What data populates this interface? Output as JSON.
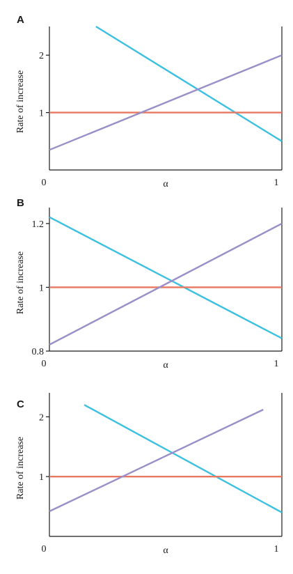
{
  "chart_data": [
    {
      "type": "line",
      "panel": "A",
      "xlabel": "α",
      "ylabel": "Rate of increase",
      "xlim": [
        0,
        1
      ],
      "ylim": [
        0,
        2.5
      ],
      "xticks": [
        {
          "value": 0,
          "label": "0"
        },
        {
          "value": 1,
          "label": "1"
        }
      ],
      "yticks": [
        {
          "value": 1,
          "label": "1"
        },
        {
          "value": 2,
          "label": "2"
        }
      ],
      "grid": false,
      "series": [
        {
          "color": "#3cc0e0",
          "x": [
            0.2,
            1
          ],
          "y": [
            2.5,
            0.5
          ]
        },
        {
          "color": "#e87860",
          "x": [
            0,
            1
          ],
          "y": [
            1,
            1
          ]
        },
        {
          "color": "#9a8ec8",
          "x": [
            0,
            1
          ],
          "y": [
            0.35,
            2
          ]
        }
      ]
    },
    {
      "type": "line",
      "panel": "B",
      "xlabel": "α",
      "ylabel": "Rate of increase",
      "xlim": [
        0,
        1
      ],
      "ylim": [
        0.8,
        1.25
      ],
      "xticks": [
        {
          "value": 0,
          "label": "0"
        },
        {
          "value": 1,
          "label": "1"
        }
      ],
      "yticks": [
        {
          "value": 0.8,
          "label": "0.8"
        },
        {
          "value": 1,
          "label": "1"
        },
        {
          "value": 1.2,
          "label": "1.2"
        }
      ],
      "grid": false,
      "series": [
        {
          "color": "#3cc0e0",
          "x": [
            0,
            1
          ],
          "y": [
            1.22,
            0.84
          ]
        },
        {
          "color": "#e87860",
          "x": [
            0,
            1
          ],
          "y": [
            1,
            1
          ]
        },
        {
          "color": "#9a8ec8",
          "x": [
            0,
            1
          ],
          "y": [
            0.82,
            1.2
          ]
        }
      ]
    },
    {
      "type": "line",
      "panel": "C",
      "xlabel": "α",
      "ylabel": "Rate of increase",
      "xlim": [
        0,
        1
      ],
      "ylim": [
        0,
        2.4
      ],
      "xticks": [
        {
          "value": 0,
          "label": "0"
        },
        {
          "value": 1,
          "label": "1"
        }
      ],
      "yticks": [
        {
          "value": 1,
          "label": "1"
        },
        {
          "value": 2,
          "label": "2"
        }
      ],
      "grid": false,
      "series": [
        {
          "color": "#3cc0e0",
          "x": [
            0.15,
            1
          ],
          "y": [
            2.2,
            0.4
          ]
        },
        {
          "color": "#e87860",
          "x": [
            0,
            1
          ],
          "y": [
            1,
            1
          ]
        },
        {
          "color": "#9a8ec8",
          "x": [
            0,
            0.92
          ],
          "y": [
            0.42,
            2.12
          ]
        }
      ]
    }
  ]
}
